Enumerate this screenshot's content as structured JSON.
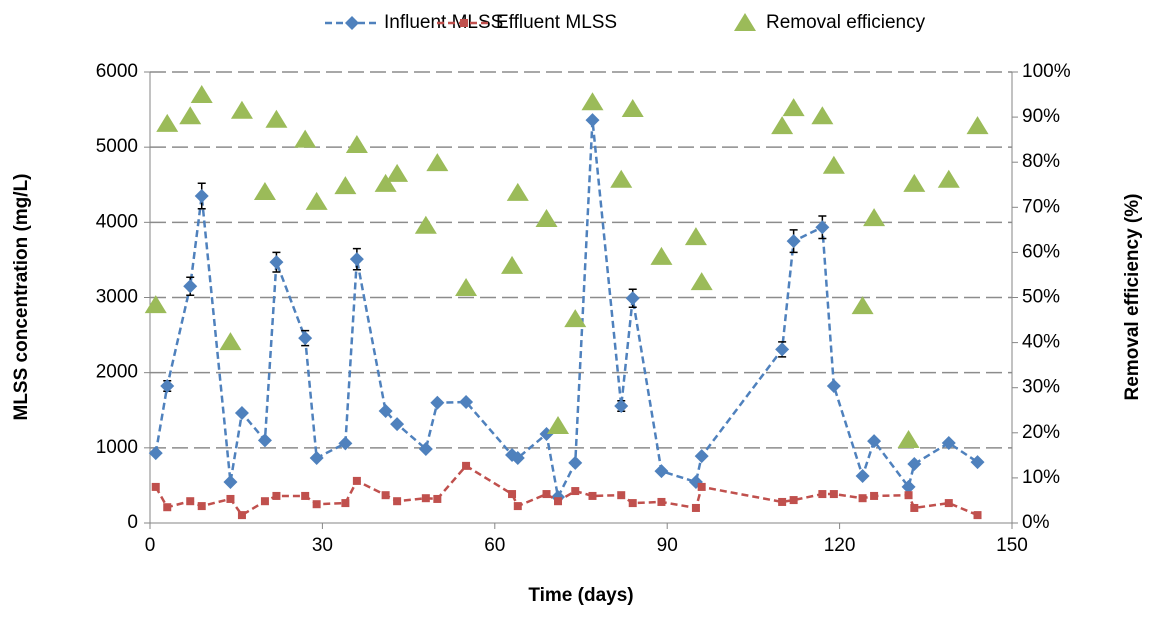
{
  "chart_data": {
    "type": "line",
    "xlabel": "Time (days)",
    "ylabel": "MLSS  concentration (mg/L)",
    "y2label": "Removal efficiency (%)",
    "x": [
      1,
      3,
      7,
      9,
      14,
      16,
      20,
      22,
      27,
      29,
      34,
      36,
      41,
      43,
      48,
      50,
      55,
      63,
      64,
      69,
      71,
      74,
      77,
      82,
      84,
      89,
      95,
      96,
      110,
      112,
      117,
      119,
      124,
      126,
      132,
      133,
      139,
      144
    ],
    "series": [
      {
        "name": "Influent MLSS",
        "color": "#4f81bd",
        "marker": "diamond",
        "dashed": true,
        "values": [
          930,
          1822,
          3150,
          4350,
          545,
          1463,
          1100,
          3470,
          2460,
          865,
          1060,
          3510,
          1490,
          1316,
          985,
          1600,
          1610,
          905,
          865,
          1184,
          346,
          800,
          5360,
          1556,
          2990,
          690,
          545,
          890,
          2310,
          3750,
          3935,
          1822,
          625,
          1090,
          480,
          785,
          1065,
          810
        ],
        "errors": [
          null,
          70,
          120,
          170,
          null,
          null,
          null,
          130,
          100,
          null,
          null,
          140,
          null,
          null,
          null,
          null,
          null,
          null,
          null,
          null,
          null,
          null,
          null,
          70,
          120,
          null,
          null,
          null,
          100,
          150,
          150,
          null,
          null,
          null,
          null,
          null,
          null,
          null
        ]
      },
      {
        "name": "Effluent MLSS",
        "color": "#c0504d",
        "marker": "square",
        "dashed": true,
        "values": [
          480,
          210,
          290,
          225,
          320,
          105,
          290,
          360,
          360,
          250,
          265,
          560,
          370,
          290,
          330,
          320,
          760,
          385,
          225,
          385,
          290,
          425,
          360,
          370,
          265,
          280,
          200,
          480,
          280,
          305,
          385,
          385,
          330,
          360,
          370,
          200,
          265,
          105
        ]
      },
      {
        "name": "Removal efficiency",
        "color": "#9bbb59",
        "marker": "triangle",
        "dashed": false,
        "axis": "y2",
        "values": [
          48.3,
          88.5,
          90.2,
          94.9,
          40.1,
          91.4,
          73.4,
          89.4,
          85,
          71.2,
          74.7,
          83.8,
          75.2,
          77.4,
          65.9,
          79.8,
          52.1,
          57,
          73.2,
          67.4,
          21.5,
          45.2,
          93.3,
          76.1,
          91.8,
          59,
          63.4,
          53.4,
          88,
          92,
          90.2,
          79.2,
          48.1,
          67.6,
          18.4,
          75.2,
          76.1,
          88
        ]
      }
    ],
    "xlim": [
      0,
      150
    ],
    "xticks": [
      0,
      30,
      60,
      90,
      120,
      150
    ],
    "ylim": [
      0,
      6000
    ],
    "yticks": [
      0,
      1000,
      2000,
      3000,
      4000,
      5000,
      6000
    ],
    "y2lim": [
      0,
      100
    ],
    "y2ticks": [
      {
        "value": 0,
        "label": "0%"
      },
      {
        "value": 10,
        "label": "10%"
      },
      {
        "value": 20,
        "label": "20%"
      },
      {
        "value": 30,
        "label": "30%"
      },
      {
        "value": 40,
        "label": "40%"
      },
      {
        "value": 50,
        "label": "50%"
      },
      {
        "value": 60,
        "label": "60%"
      },
      {
        "value": 70,
        "label": "70%"
      },
      {
        "value": 80,
        "label": "80%"
      },
      {
        "value": 90,
        "label": "90%"
      },
      {
        "value": 100,
        "label": "100%"
      }
    ],
    "grid": true,
    "legend": "top"
  }
}
